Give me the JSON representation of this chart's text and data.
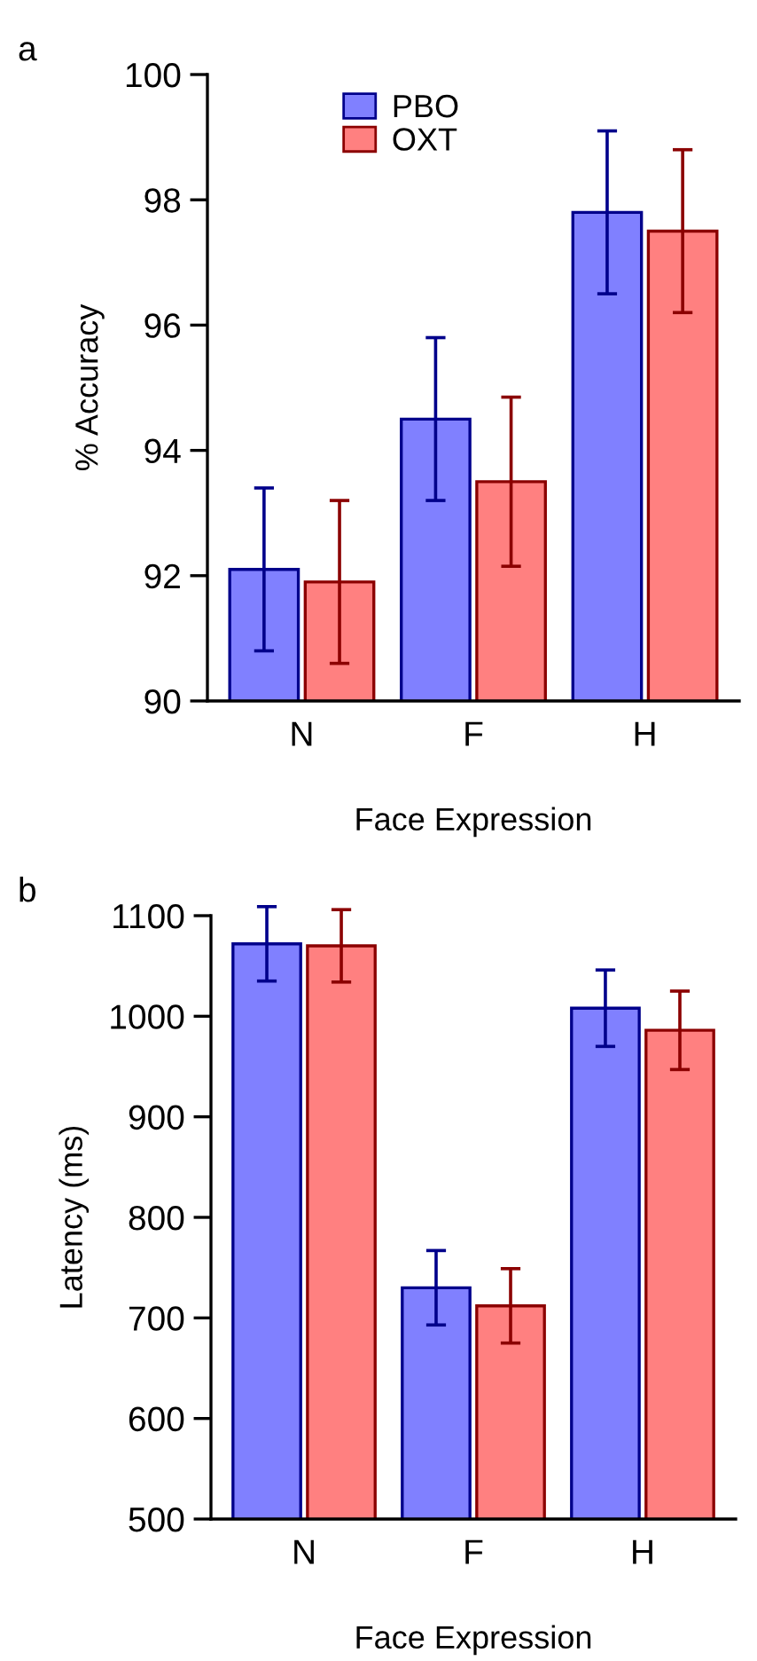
{
  "chart_data": [
    {
      "type": "bar",
      "title": "a",
      "xlabel": "Face Expression",
      "ylabel": "% Accuracy",
      "categories": [
        "N",
        "F",
        "H"
      ],
      "ylim": [
        90,
        100
      ],
      "yticks": [
        90,
        92,
        94,
        96,
        98,
        100
      ],
      "legend": "top left",
      "grid": false,
      "series": [
        {
          "name": "PBO",
          "color": "#8080ff",
          "values": [
            92.1,
            94.5,
            97.8
          ],
          "errors": [
            1.3,
            1.3,
            1.3
          ]
        },
        {
          "name": "OXT",
          "color": "#ff8080",
          "values": [
            91.9,
            93.5,
            97.5
          ],
          "errors": [
            1.3,
            1.35,
            1.3
          ]
        }
      ]
    },
    {
      "type": "bar",
      "title": "b",
      "xlabel": "Face Expression",
      "ylabel": "Latency (ms)",
      "categories": [
        "N",
        "F",
        "H"
      ],
      "ylim": [
        500,
        1100
      ],
      "yticks": [
        500,
        600,
        700,
        800,
        900,
        1000,
        1100
      ],
      "grid": false,
      "series": [
        {
          "color": "#8080ff",
          "values": [
            1072,
            730,
            1008
          ],
          "errors": [
            37,
            37,
            38
          ]
        },
        {
          "color": "#ff8080",
          "values": [
            1070,
            712,
            986
          ],
          "errors": [
            36,
            37,
            39
          ]
        }
      ]
    }
  ]
}
